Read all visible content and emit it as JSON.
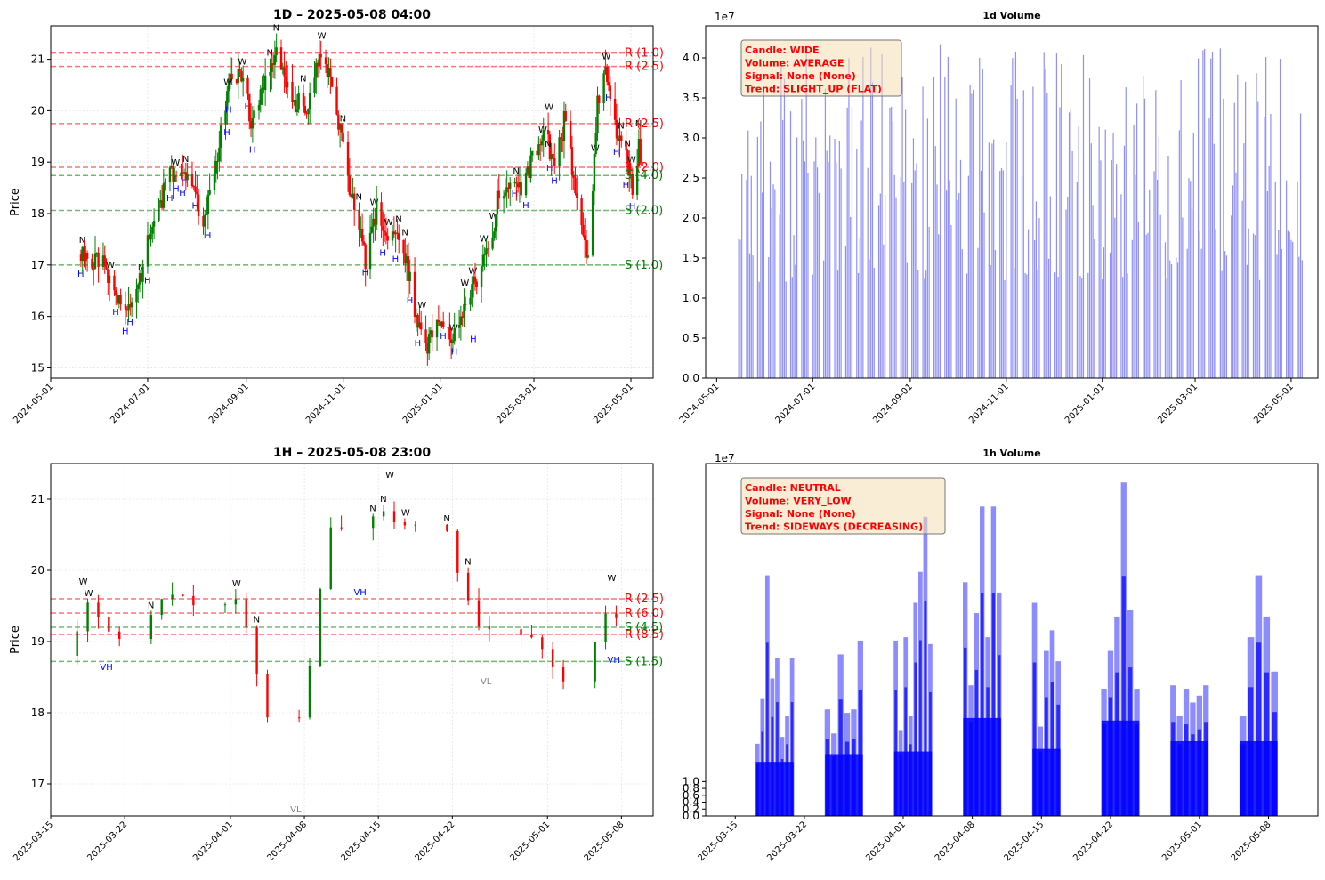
{
  "chart_data": [
    {
      "type": "candlestick",
      "title": "1D – 2025-05-08 04:00",
      "ylabel": "Price",
      "ylim": [
        14.8,
        21.65
      ],
      "yticks": [
        15,
        16,
        17,
        18,
        19,
        20,
        21
      ],
      "xticks": [
        "2024-05-01",
        "2024-07-01",
        "2024-09-01",
        "2024-11-01",
        "2025-01-01",
        "2025-03-01",
        "2025-05-01"
      ],
      "x_range": [
        "2024-05-01",
        "2025-05-15"
      ],
      "grid": true,
      "levels": [
        {
          "label": "R (1.0)",
          "value": 21.12,
          "kind": "resistance"
        },
        {
          "label": "R (2.5)",
          "value": 20.86,
          "kind": "resistance"
        },
        {
          "label": "R (2.5)",
          "value": 19.75,
          "kind": "resistance"
        },
        {
          "label": "R (2.0)",
          "value": 18.9,
          "kind": "resistance"
        },
        {
          "label": "S (4.0)",
          "value": 18.74,
          "kind": "support"
        },
        {
          "label": "S (2.0)",
          "value": 18.06,
          "kind": "support"
        },
        {
          "label": "S (1.0)",
          "value": 17.0,
          "kind": "support"
        }
      ],
      "price_path": [
        [
          "2024-05-20",
          17.2
        ],
        [
          "2024-06-01",
          17.1
        ],
        [
          "2024-06-08",
          16.7
        ],
        [
          "2024-06-15",
          16.0
        ],
        [
          "2024-06-25",
          16.6
        ],
        [
          "2024-07-01",
          17.4
        ],
        [
          "2024-07-10",
          18.3
        ],
        [
          "2024-07-18",
          18.9
        ],
        [
          "2024-07-28",
          18.5
        ],
        [
          "2024-08-05",
          17.8
        ],
        [
          "2024-08-12",
          18.8
        ],
        [
          "2024-08-20",
          20.4
        ],
        [
          "2024-08-28",
          20.8
        ],
        [
          "2024-09-05",
          19.7
        ],
        [
          "2024-09-12",
          20.6
        ],
        [
          "2024-09-20",
          21.1
        ],
        [
          "2024-09-28",
          20.3
        ],
        [
          "2024-10-08",
          20.0
        ],
        [
          "2024-10-18",
          21.2
        ],
        [
          "2024-10-25",
          20.4
        ],
        [
          "2024-11-01",
          19.2
        ],
        [
          "2024-11-08",
          18.0
        ],
        [
          "2024-11-15",
          17.1
        ],
        [
          "2024-11-22",
          18.0
        ],
        [
          "2024-12-01",
          17.5
        ],
        [
          "2024-12-08",
          17.6
        ],
        [
          "2024-12-15",
          16.3
        ],
        [
          "2024-12-22",
          15.3
        ],
        [
          "2025-01-01",
          15.9
        ],
        [
          "2025-01-08",
          15.5
        ],
        [
          "2025-01-15",
          16.0
        ],
        [
          "2025-01-22",
          16.6
        ],
        [
          "2025-02-01",
          17.3
        ],
        [
          "2025-02-08",
          18.6
        ],
        [
          "2025-02-15",
          18.4
        ],
        [
          "2025-02-22",
          18.6
        ],
        [
          "2025-03-01",
          19.1
        ],
        [
          "2025-03-08",
          19.5
        ],
        [
          "2025-03-15",
          18.9
        ],
        [
          "2025-03-20",
          19.8
        ],
        [
          "2025-03-28",
          18.4
        ],
        [
          "2025-04-04",
          17.1
        ],
        [
          "2025-04-10",
          20.1
        ],
        [
          "2025-04-15",
          21.0
        ],
        [
          "2025-04-22",
          19.5
        ],
        [
          "2025-04-28",
          19.2
        ],
        [
          "2025-05-02",
          18.4
        ],
        [
          "2025-05-06",
          19.3
        ],
        [
          "2025-05-08",
          19.0
        ]
      ],
      "markers": [
        {
          "text": "N",
          "x": "2024-07-25",
          "y": 19.0
        },
        {
          "text": "W",
          "x": "2024-08-20",
          "y": 20.5
        },
        {
          "text": "W",
          "x": "2024-10-18",
          "y": 21.4
        },
        {
          "text": "H",
          "x": "2024-11-15",
          "y": 16.8
        },
        {
          "text": "H",
          "x": "2025-01-22",
          "y": 15.5
        },
        {
          "text": "N",
          "x": "2025-03-10",
          "y": 19.3
        },
        {
          "text": "W",
          "x": "2025-04-15",
          "y": 21.0
        },
        {
          "text": "H",
          "x": "2025-04-28",
          "y": 18.5
        }
      ]
    },
    {
      "type": "bar",
      "title": "1d Volume",
      "offset_label": "1e7",
      "ylim": [
        0,
        4.4
      ],
      "yticks": [
        "0.0",
        "0.5",
        "1.0",
        "1.5",
        "2.0",
        "2.5",
        "3.0",
        "3.5",
        "4.0"
      ],
      "xticks": [
        "2024-05-01",
        "2024-07-01",
        "2024-09-01",
        "2024-11-01",
        "2025-01-01",
        "2025-03-01",
        "2025-05-01"
      ],
      "x_range": [
        "2024-04-24",
        "2025-05-18"
      ],
      "first_bar": "2024-05-15",
      "last_bar": "2025-05-08",
      "value_range": [
        1.2,
        4.2
      ],
      "color": "#7b7bf5",
      "info_box": [
        "Candle: WIDE",
        "Volume: AVERAGE",
        "Signal: None (None)",
        "Trend: SLIGHT_UP (FLAT)"
      ]
    },
    {
      "type": "candlestick",
      "title": "1H – 2025-05-08 23:00",
      "ylabel": "Price",
      "ylim": [
        16.55,
        21.5
      ],
      "yticks": [
        17,
        18,
        19,
        20,
        21
      ],
      "xticks": [
        "2025-03-15",
        "2025-03-22",
        "2025-04-01",
        "2025-04-08",
        "2025-04-15",
        "2025-04-22",
        "2025-05-01",
        "2025-05-08"
      ],
      "x_range": [
        "2025-03-15",
        "2025-05-11"
      ],
      "grid": true,
      "levels": [
        {
          "label": "R (2.5)",
          "value": 19.6,
          "kind": "resistance"
        },
        {
          "label": "R (6.0)",
          "value": 19.4,
          "kind": "resistance"
        },
        {
          "label": "S (4.5)",
          "value": 19.2,
          "kind": "support"
        },
        {
          "label": "R (8.5)",
          "value": 19.1,
          "kind": "resistance"
        },
        {
          "label": "S (1.5)",
          "value": 18.72,
          "kind": "support"
        }
      ],
      "price_path": [
        [
          "2025-03-17",
          18.8
        ],
        [
          "2025-03-18",
          19.6
        ],
        [
          "2025-03-19",
          19.4
        ],
        [
          "2025-03-20",
          19.1
        ],
        [
          "2025-03-24",
          19.2
        ],
        [
          "2025-03-25",
          19.4
        ],
        [
          "2025-03-26",
          19.6
        ],
        [
          "2025-03-27",
          19.8
        ],
        [
          "2025-03-28",
          19.5
        ],
        [
          "2025-03-31",
          19.6
        ],
        [
          "2025-04-01",
          19.4
        ],
        [
          "2025-04-02",
          19.6
        ],
        [
          "2025-04-03",
          19.0
        ],
        [
          "2025-04-04",
          17.9
        ],
        [
          "2025-04-07",
          17.6
        ],
        [
          "2025-04-08",
          18.2
        ],
        [
          "2025-04-09",
          19.1
        ],
        [
          "2025-04-10",
          20.4
        ],
        [
          "2025-04-11",
          20.6
        ],
        [
          "2025-04-14",
          20.8
        ],
        [
          "2025-04-15",
          20.6
        ],
        [
          "2025-04-16",
          20.9
        ],
        [
          "2025-04-17",
          20.5
        ],
        [
          "2025-04-21",
          20.8
        ],
        [
          "2025-04-22",
          20.3
        ],
        [
          "2025-04-23",
          19.8
        ],
        [
          "2025-04-24",
          19.4
        ],
        [
          "2025-04-25",
          19.1
        ],
        [
          "2025-04-28",
          19.0
        ],
        [
          "2025-04-29",
          19.1
        ],
        [
          "2025-04-30",
          18.9
        ],
        [
          "2025-05-01",
          18.7
        ],
        [
          "2025-05-02",
          18.5
        ],
        [
          "2025-05-05",
          18.7
        ],
        [
          "2025-05-06",
          19.2
        ],
        [
          "2025-05-07",
          19.5
        ],
        [
          "2025-05-08",
          19.1
        ]
      ],
      "markers": [
        {
          "text": "W",
          "x": "2025-03-18",
          "y": 19.8
        },
        {
          "text": "VH",
          "x": "2025-03-20",
          "y": 18.6
        },
        {
          "text": "VL",
          "x": "2025-04-07",
          "y": 16.6
        },
        {
          "text": "VH",
          "x": "2025-04-13",
          "y": 19.65
        },
        {
          "text": "W",
          "x": "2025-04-16",
          "y": 21.3
        },
        {
          "text": "VL",
          "x": "2025-04-25",
          "y": 18.4
        },
        {
          "text": "VH",
          "x": "2025-05-07",
          "y": 18.7
        },
        {
          "text": "W",
          "x": "2025-05-07",
          "y": 19.85
        }
      ]
    },
    {
      "type": "bar",
      "title": "1h Volume",
      "offset_label": "1e7",
      "ylim": [
        0,
        10.25
      ],
      "yticks": [
        "0.0",
        "0.2",
        "0.4",
        "0.6",
        "0.8",
        "1.0"
      ],
      "xticks": [
        "2025-03-15",
        "2025-03-22",
        "2025-04-01",
        "2025-04-08",
        "2025-04-15",
        "2025-04-22",
        "2025-05-01",
        "2025-05-08"
      ],
      "x_range": [
        "2025-03-12",
        "2025-05-13"
      ],
      "color": "#0000ff",
      "sessions": [
        [
          "2025-03-17",
          "2025-03-21"
        ],
        [
          "2025-03-24",
          "2025-03-28"
        ],
        [
          "2025-03-31",
          "2025-04-04"
        ],
        [
          "2025-04-07",
          "2025-04-11"
        ],
        [
          "2025-04-14",
          "2025-04-17"
        ],
        [
          "2025-04-21",
          "2025-04-25"
        ],
        [
          "2025-04-28",
          "2025-05-02"
        ],
        [
          "2025-05-05",
          "2025-05-09"
        ]
      ],
      "peak_values": [
        [
          2.1,
          3.4,
          7.0,
          4.0,
          4.6,
          2.3,
          2.9,
          4.6
        ],
        [
          3.1,
          2.4,
          4.7,
          3.0,
          3.1,
          5.1
        ],
        [
          5.1,
          2.5,
          5.2,
          2.9,
          6.2,
          7.1,
          8.7,
          5.0
        ],
        [
          6.8,
          3.8,
          5.9,
          9.0,
          5.2,
          9.0,
          6.5
        ],
        [
          6.2,
          2.6,
          4.8,
          5.4,
          4.5
        ],
        [
          3.7,
          4.8,
          5.8,
          9.7,
          6.0,
          3.7
        ],
        [
          3.8,
          2.9,
          3.7,
          3.3,
          3.5,
          3.8
        ],
        [
          2.9,
          5.2,
          7.0,
          5.8,
          4.2
        ]
      ],
      "info_box": [
        "Candle: NEUTRAL",
        "Volume: VERY_LOW",
        "Signal: None (None)",
        "Trend: SIDEWAYS (DECREASING)"
      ]
    }
  ]
}
